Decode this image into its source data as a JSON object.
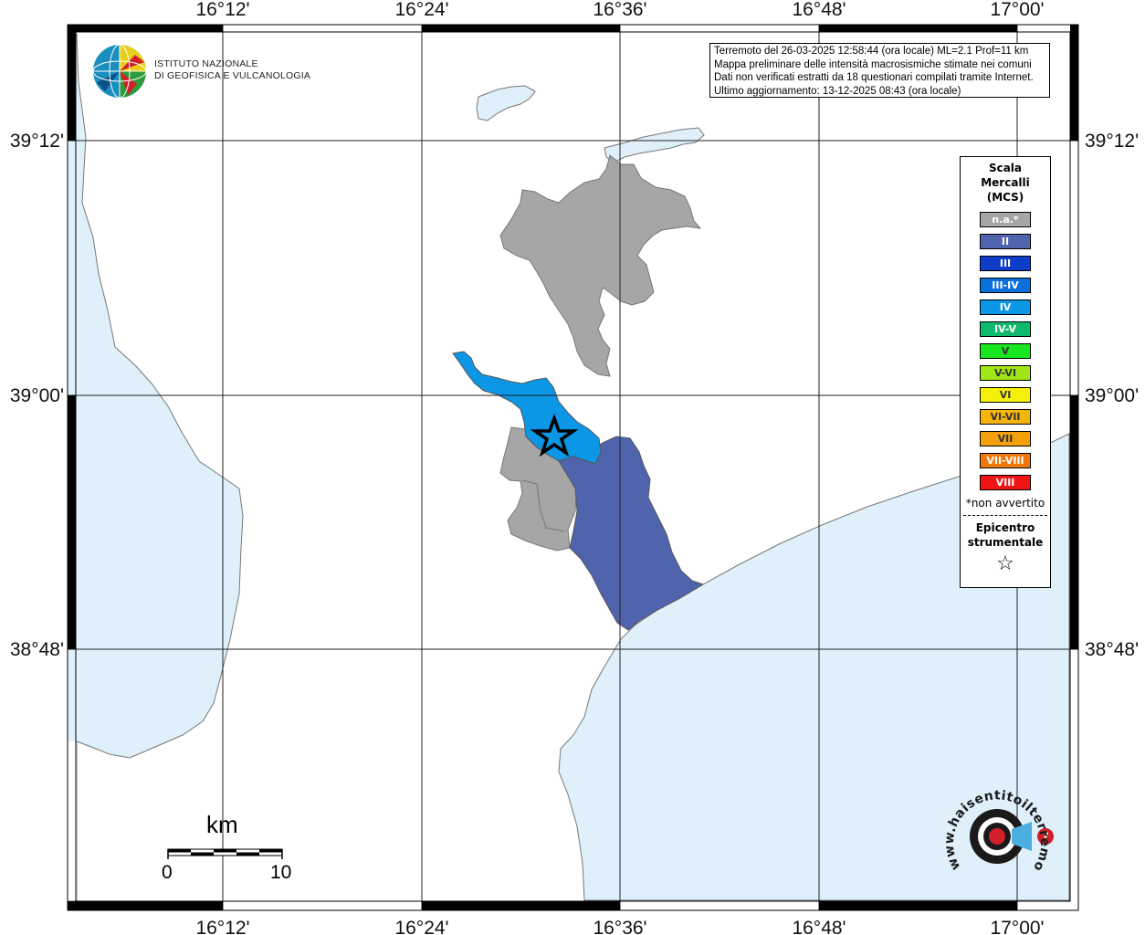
{
  "map": {
    "longitude_labels": [
      "16°12'",
      "16°24'",
      "16°36'",
      "16°48'",
      "17°00'"
    ],
    "latitude_labels": [
      "39°12'",
      "39°00'",
      "38°48'"
    ],
    "colors": {
      "sea": "#dff0fb",
      "not_felt": "#a6a6a6",
      "intensity_II": "#5064ae",
      "intensity_IV": "#0b96e6",
      "epicenter": "#000000"
    }
  },
  "info": {
    "line1": "Terremoto del 26-03-2025 12:58:44 (ora locale) ML=2.1 Prof=11 km",
    "line2": "Mappa preliminare delle intensità macrosismiche stimate nei comuni",
    "line3": "Dati non verificati estratti da 18 questionari compilati tramite Internet.",
    "line4": "Ultimo aggiornamento: 13-12-2025 08:43 (ora locale)"
  },
  "logo": {
    "line1": "ISTITUTO NAZIONALE",
    "line2": "DI GEOFISICA E VULCANOLOGIA",
    "badge_text": "www.haisentitoilterremoto.it",
    "badge_mark": "?"
  },
  "legend": {
    "title": "Scala Mercalli (MCS)",
    "items": [
      {
        "label": "n.a.*",
        "color": "#a6a6a6"
      },
      {
        "label": "II",
        "color": "#5064ae"
      },
      {
        "label": "III",
        "color": "#0f3cc8"
      },
      {
        "label": "III-IV",
        "color": "#0b6fdc"
      },
      {
        "label": "IV",
        "color": "#0b96e6"
      },
      {
        "label": "IV-V",
        "color": "#0fba6e"
      },
      {
        "label": "V",
        "color": "#18e61e"
      },
      {
        "label": "V-VI",
        "color": "#a0e614"
      },
      {
        "label": "VI",
        "color": "#f5f00a"
      },
      {
        "label": "VI-VII",
        "color": "#f5b40a"
      },
      {
        "label": "VII",
        "color": "#f5a00a"
      },
      {
        "label": "VII-VIII",
        "color": "#f0780a"
      },
      {
        "label": "VIII",
        "color": "#f01414"
      }
    ],
    "note": "*non avvertito",
    "epicenter_label": "Epicentro strumentale",
    "epicenter_symbol": "☆"
  },
  "scale_bar": {
    "unit": "km",
    "start": "0",
    "end": "10"
  }
}
